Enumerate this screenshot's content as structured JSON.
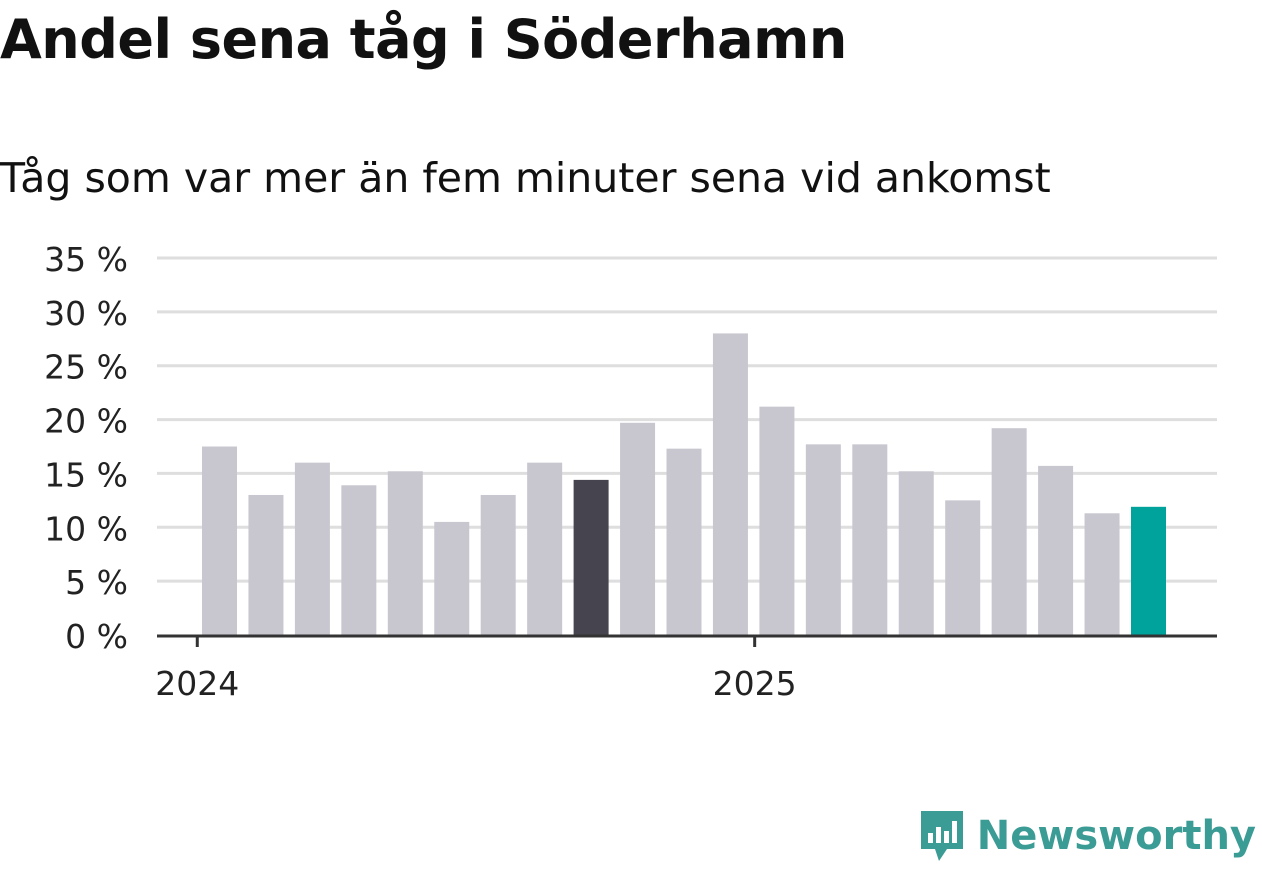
{
  "header": {
    "title": "Andel sena tåg i Söderhamn",
    "subtitle": "Tåg som var mer än fem minuter sena vid ankomst"
  },
  "brand": {
    "name": "Newsworthy",
    "icon": "newsworthy-logo-icon"
  },
  "colors": {
    "bar_default": "#c8c7d0",
    "bar_highlight_dark": "#45444f",
    "bar_highlight_latest": "#00a39b",
    "grid": "#dedede",
    "axis": "#333333",
    "brand": "#3b9b95"
  },
  "chart_data": {
    "type": "bar",
    "ylim": [
      0,
      35
    ],
    "yticks": [
      0,
      5,
      10,
      15,
      20,
      25,
      30,
      35
    ],
    "ytick_labels": [
      "0 %",
      "5 %",
      "10 %",
      "15 %",
      "20 %",
      "25 %",
      "30 %",
      "35 %"
    ],
    "x_labels": [
      {
        "label": "2024",
        "index": 0
      },
      {
        "label": "2025",
        "index": 12
      }
    ],
    "values": [
      17.5,
      13,
      16,
      13.9,
      15.2,
      10.5,
      13,
      16,
      14.4,
      19.7,
      17.3,
      28,
      21.2,
      17.7,
      17.7,
      15.2,
      12.5,
      19.2,
      15.7,
      11.3,
      11.9
    ],
    "highlight_dark_index": 8,
    "highlight_latest_index": 20,
    "grid": true
  }
}
